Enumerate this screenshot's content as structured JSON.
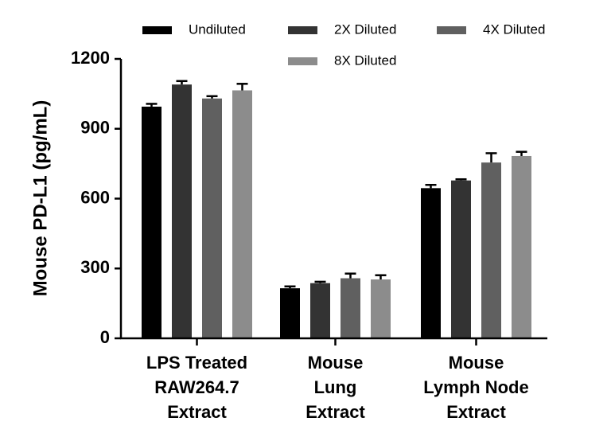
{
  "chart_data": {
    "type": "bar",
    "title": "",
    "xlabel": "",
    "ylabel": "Mouse PD-L1 (pg/mL)",
    "ylim": [
      0,
      1200
    ],
    "yticks": [
      0,
      300,
      600,
      900,
      1200
    ],
    "ytick_labels": [
      "0",
      "300",
      "600",
      "900",
      "1200"
    ],
    "categories": [
      [
        "LPS Treated",
        "RAW264.7",
        "Extract"
      ],
      [
        "Mouse",
        "Lung",
        "Extract"
      ],
      [
        "Mouse",
        "Lymph Node",
        "Extract"
      ]
    ],
    "series": [
      {
        "name": "Undiluted",
        "color": "#000000",
        "values": [
          995,
          215,
          645
        ],
        "errors": [
          12,
          8,
          14
        ]
      },
      {
        "name": "2X Diluted",
        "color": "#333333",
        "values": [
          1090,
          237,
          678
        ],
        "errors": [
          15,
          6,
          5
        ]
      },
      {
        "name": "4X Diluted",
        "color": "#606060",
        "values": [
          1030,
          258,
          755
        ],
        "errors": [
          10,
          20,
          40
        ]
      },
      {
        "name": "8X Diluted",
        "color": "#8c8c8c",
        "values": [
          1065,
          253,
          783
        ],
        "errors": [
          28,
          18,
          18
        ]
      }
    ],
    "error_bars": true,
    "grid": false,
    "legend_position": "top"
  }
}
